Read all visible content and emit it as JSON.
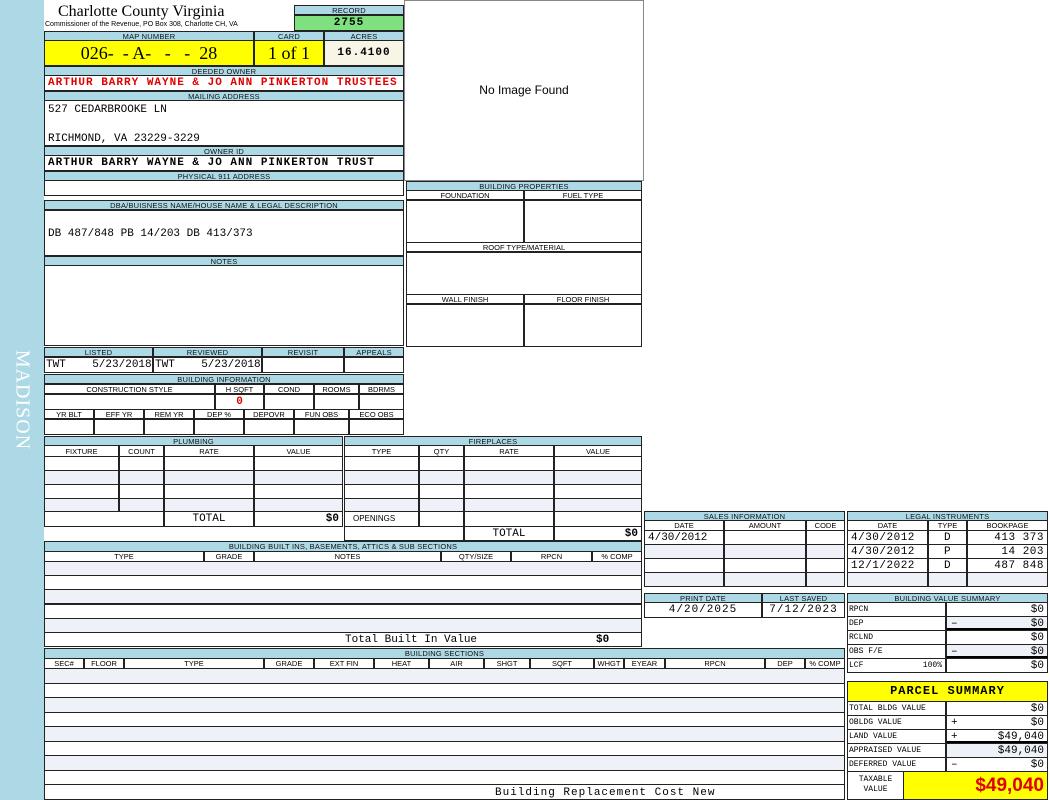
{
  "sidebar": {
    "district": "MADISON"
  },
  "header": {
    "title": "Charlotte County Virginia",
    "subtitle": "Commissioner of the Revenue, PO Box 308, Charlotte CH, VA",
    "record_label": "RECORD",
    "record": "2755"
  },
  "parcel": {
    "map_label": "MAP NUMBER",
    "map_number": "026-  - A-   -   -  28",
    "card_label": "CARD",
    "card": "1 of 1",
    "acres_label": "ACRES",
    "acres": "16.4100"
  },
  "owner": {
    "deeded_label": "DEEDED OWNER",
    "deeded": "ARTHUR BARRY WAYNE & JO ANN PINKERTON TRUSTEES",
    "mailing_label": "MAILING ADDRESS",
    "address1": "527 CEDARBROOKE LN",
    "address2": "RICHMOND, VA 23229-3229",
    "owner_id_label": "OWNER ID",
    "owner_id": "ARTHUR BARRY WAYNE & JO ANN PINKERTON TRUST",
    "physical_label": "PHYSICAL 911 ADDRESS",
    "physical": ""
  },
  "image": {
    "text": "No Image Found"
  },
  "legal": {
    "dba_label": "DBA/BUISNESS NAME/HOUSE NAME & LEGAL DESCRIPTION",
    "dba": "DB 487/848 PB 14/203 DB 413/373",
    "notes_label": "NOTES"
  },
  "building_properties": {
    "label": "BUILDING PROPERTIES",
    "foundation": "FOUNDATION",
    "fuel": "FUEL TYPE",
    "roof": "ROOF TYPE/MATERIAL",
    "wall": "WALL FINISH",
    "floor": "FLOOR FINISH"
  },
  "review": {
    "listed_label": "LISTED",
    "listed": "TWT    5/23/2018",
    "reviewed_label": "REVIEWED",
    "reviewed": "TWT    5/23/2018",
    "revisit_label": "REVISIT",
    "appeals_label": "APPEALS"
  },
  "building_info": {
    "label": "BUILDING INFORMATION",
    "cols1": [
      "CONSTRUCTION STYLE",
      "H SQFT",
      "COND",
      "ROOMS",
      "BDRMS"
    ],
    "hsqft": "0",
    "cols2": [
      "YR BLT",
      "EFF YR",
      "REM YR",
      "DEP %",
      "DEPOVR",
      "FUN OBS",
      "ECO OBS"
    ]
  },
  "plumbing": {
    "label": "PLUMBING",
    "cols": [
      "FIXTURE",
      "COUNT",
      "RATE",
      "VALUE"
    ],
    "total_label": "TOTAL",
    "total": "$0"
  },
  "fireplaces": {
    "label": "FIREPLACES",
    "cols": [
      "TYPE",
      "QTY",
      "RATE",
      "VALUE"
    ],
    "openings": "OPENINGS",
    "total_label": "TOTAL",
    "total": "$0"
  },
  "sales": {
    "label": "SALES INFORMATION",
    "cols": [
      "DATE",
      "AMOUNT",
      "CODE"
    ],
    "rows": [
      [
        "4/30/2012",
        "",
        ""
      ]
    ]
  },
  "instruments": {
    "label": "LEGAL INSTRUMENTS",
    "cols": [
      "DATE",
      "TYPE",
      "BOOKPAGE"
    ],
    "rows": [
      [
        "4/30/2012",
        "D",
        "413 373"
      ],
      [
        "4/30/2012",
        "P",
        "14 203"
      ],
      [
        "12/1/2022",
        "D",
        "487 848"
      ]
    ]
  },
  "dates": {
    "print_label": "PRINT DATE",
    "print": "4/20/2025",
    "saved_label": "LAST SAVED",
    "saved": "7/12/2023"
  },
  "builtins": {
    "label": "BUILDING BUILT INS, BASEMENTS, ATTICS & SUB SECTIONS",
    "cols": [
      "TYPE",
      "GRADE",
      "NOTES",
      "QTY/SIZE",
      "RPCN",
      "% COMP"
    ],
    "total_label": "Total Built In Value",
    "total": "$0"
  },
  "sections": {
    "label": "BUILDING SECTIONS",
    "cols": [
      "SEC#",
      "FLOOR",
      "TYPE",
      "GRADE",
      "EXT FIN",
      "HEAT",
      "AIR",
      "SHGT",
      "SQFT",
      "WHGT",
      "EYEAR",
      "RPCN",
      "DEP",
      "% COMP"
    ],
    "footer": "Building Replacement Cost New"
  },
  "value_summary": {
    "label": "BUILDING VALUE SUMMARY",
    "rows": [
      [
        "RPCN",
        "",
        "$0"
      ],
      [
        "DEP",
        "–",
        "$0"
      ],
      [
        "RCLND",
        "",
        "$0"
      ],
      [
        "OBS F/E",
        "–",
        "$0"
      ],
      [
        "LCF",
        "",
        "$0"
      ]
    ],
    "lcf_pct": "100%"
  },
  "parcel_summary": {
    "label": "PARCEL SUMMARY",
    "rows": [
      [
        "TOTAL BLDG VALUE",
        "",
        "$0"
      ],
      [
        "OBLDG VALUE",
        "+",
        "$0"
      ],
      [
        "LAND VALUE",
        "+",
        "$49,040"
      ],
      [
        "APPRAISED VALUE",
        "",
        "$49,040"
      ],
      [
        "DEFERRED VALUE",
        "–",
        "$0"
      ]
    ],
    "taxable_label": "TAXABLE VALUE",
    "taxable": "$49,040"
  },
  "colors": {
    "label_bg": "#add8e6",
    "highlight": "#ffff00",
    "record_bg": "#7ee07e",
    "owner_red": "#e00000"
  }
}
